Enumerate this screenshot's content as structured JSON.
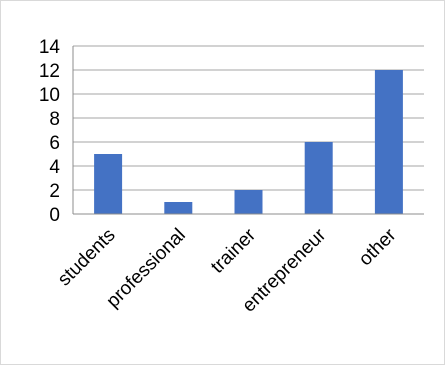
{
  "chart_data": {
    "type": "bar",
    "title": "",
    "xlabel": "",
    "ylabel": "",
    "categories": [
      "students",
      "professional",
      "trainer",
      "entrepreneur",
      "other"
    ],
    "values": [
      5,
      1,
      2,
      6,
      12
    ],
    "ylim": [
      0,
      14
    ],
    "yticks": [
      0,
      2,
      4,
      6,
      8,
      10,
      12,
      14
    ],
    "grid": true,
    "legend": "none",
    "bar_color": "#4472c4",
    "grid_color": "#a6a6a6"
  }
}
